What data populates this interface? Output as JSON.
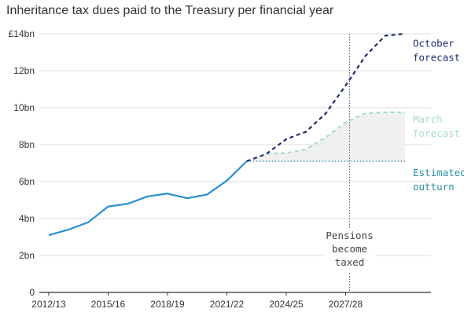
{
  "chart_data": {
    "type": "line",
    "title": "Inheritance tax dues paid to the Treasury per financial year",
    "xlabel": "",
    "ylabel": "",
    "ylim": [
      0,
      14
    ],
    "y_ticks": [
      "0",
      "2bn",
      "4bn",
      "6bn",
      "8bn",
      "10bn",
      "12bn",
      "£14bn"
    ],
    "x_ticks": [
      "2012/13",
      "2015/16",
      "2018/19",
      "2021/22",
      "2024/25",
      "2027/28"
    ],
    "x_tick_positions": [
      2012,
      2015,
      2018,
      2021,
      2024,
      2027
    ],
    "grid": "horizontal",
    "colors": {
      "actual": "#2a8fcf",
      "october": "#1f2f6b",
      "march": "#a9dcd3",
      "estimated": "#2a8fa8",
      "marker": "#4a5a8c",
      "grid": "#dddddd",
      "band": "#eeeeee"
    },
    "series": [
      {
        "key": "actual",
        "style": "solid",
        "x": [
          2012,
          2013,
          2014,
          2015,
          2016,
          2017,
          2018,
          2019,
          2020,
          2021,
          2022
        ],
        "values": [
          3.1,
          3.4,
          3.8,
          4.65,
          4.8,
          5.2,
          5.35,
          5.1,
          5.3,
          6.05,
          7.1
        ]
      },
      {
        "key": "october",
        "name": "October forecast",
        "style": "dashed",
        "x": [
          2022,
          2023,
          2024,
          2025,
          2026,
          2027,
          2028,
          2029,
          2030
        ],
        "values": [
          7.1,
          7.5,
          8.3,
          8.7,
          9.7,
          11.2,
          12.8,
          13.9,
          14.0
        ]
      },
      {
        "key": "march",
        "name": "March forecast",
        "style": "dashed",
        "x": [
          2022,
          2023,
          2024,
          2025,
          2026,
          2027,
          2028,
          2029,
          2030
        ],
        "values": [
          7.1,
          7.5,
          7.55,
          7.75,
          8.4,
          9.2,
          9.7,
          9.75,
          9.75
        ]
      },
      {
        "key": "estimated",
        "name": "Estimated outturn",
        "style": "dotted",
        "x": [
          2022,
          2030
        ],
        "values": [
          7.1,
          7.1
        ]
      }
    ],
    "annotations": [
      {
        "key": "october",
        "lines": [
          "October",
          "forecast"
        ],
        "y": 13.3
      },
      {
        "key": "march",
        "lines": [
          "March",
          "forecast"
        ],
        "y": 9.2
      },
      {
        "key": "estimated",
        "lines": [
          "Estimated",
          "outturn"
        ],
        "y": 6.3
      }
    ],
    "event": {
      "x": 2027,
      "lines": [
        "Pensions",
        "become",
        "taxed"
      ]
    }
  }
}
